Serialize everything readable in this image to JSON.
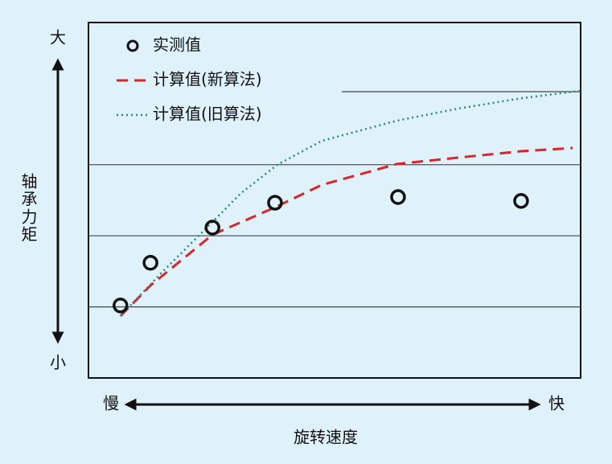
{
  "chart_data": {
    "type": "line",
    "y_high_label": "大",
    "y_low_label": "小",
    "ylabel": "轴承力矩",
    "x_low_label": "慢",
    "x_high_label": "快",
    "xlabel": "旋转速度",
    "xlim": [
      0,
      100
    ],
    "ylim": [
      0,
      100
    ],
    "yticks": [
      20,
      40,
      60
    ],
    "grid": true,
    "legend": "upper left",
    "series": [
      {
        "name": "实测值",
        "type": "scatter",
        "color": "#111111",
        "x": [
          6.5,
          12.6,
          25.2,
          37.9,
          62.9,
          87.9
        ],
        "values": [
          20.4,
          32.4,
          42.3,
          49.3,
          50.9,
          49.8
        ]
      },
      {
        "name": "计算值(新算法)",
        "type": "line",
        "style": "dashed",
        "color": "#d9262b",
        "x": [
          6.5,
          12.6,
          25.2,
          37.9,
          47.4,
          62.7,
          75.2,
          88,
          98.4
        ],
        "values": [
          17.4,
          26,
          40.3,
          48,
          54.3,
          60.2,
          62,
          63.8,
          64.7
        ]
      },
      {
        "name": "计算值(旧算法)",
        "type": "line",
        "style": "dotted",
        "color": "#2a8a7a",
        "x": [
          6.5,
          14.7,
          22.9,
          31,
          38.4,
          47.4,
          62.7,
          75.2,
          88,
          100
        ],
        "values": [
          17.4,
          29.4,
          40.7,
          52,
          60,
          66.7,
          72.4,
          75.8,
          78.7,
          80.8
        ]
      }
    ]
  }
}
